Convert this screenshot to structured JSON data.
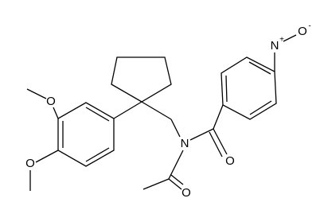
{
  "atoms": [
    {
      "label": "O"
    },
    {
      "label": "O"
    },
    {
      "label": "N"
    },
    {
      "label": "O"
    },
    {
      "label": "O"
    },
    {
      "label": "N",
      "charge": "+"
    },
    {
      "label": "O",
      "charge": "-"
    }
  ]
}
